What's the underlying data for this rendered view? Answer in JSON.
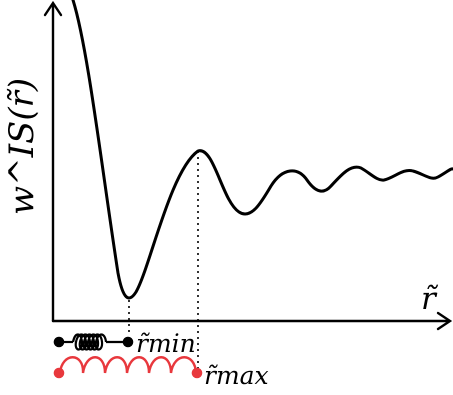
{
  "labels": {
    "ylabel": "w^IS(r̃)",
    "xlabel": "r̃",
    "rmin": "r̃min",
    "rmax": "r̃max"
  },
  "colors": {
    "black": "#000000",
    "red": "#e8383d"
  }
}
